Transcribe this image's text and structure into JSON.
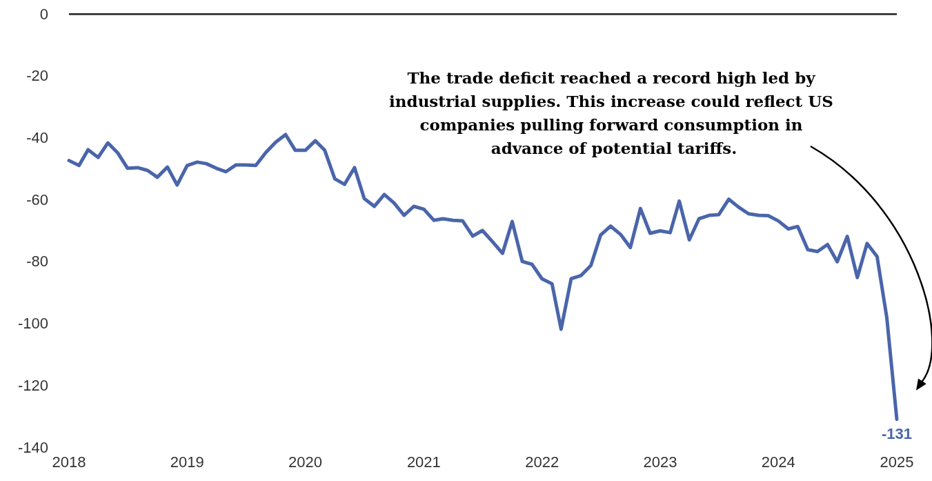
{
  "chart_data": {
    "type": "line",
    "x": [
      "2018-01",
      "2018-02",
      "2018-03",
      "2018-04",
      "2018-05",
      "2018-06",
      "2018-07",
      "2018-08",
      "2018-09",
      "2018-10",
      "2018-11",
      "2018-12",
      "2019-01",
      "2019-02",
      "2019-03",
      "2019-04",
      "2019-05",
      "2019-06",
      "2019-07",
      "2019-08",
      "2019-09",
      "2019-10",
      "2019-11",
      "2019-12",
      "2020-01",
      "2020-02",
      "2020-03",
      "2020-04",
      "2020-05",
      "2020-06",
      "2020-07",
      "2020-08",
      "2020-09",
      "2020-10",
      "2020-11",
      "2020-12",
      "2021-01",
      "2021-02",
      "2021-03",
      "2021-04",
      "2021-05",
      "2021-06",
      "2021-07",
      "2021-08",
      "2021-09",
      "2021-10",
      "2021-11",
      "2021-12",
      "2022-01",
      "2022-02",
      "2022-03",
      "2022-04",
      "2022-05",
      "2022-06",
      "2022-07",
      "2022-08",
      "2022-09",
      "2022-10",
      "2022-11",
      "2022-12",
      "2023-01",
      "2023-02",
      "2023-03",
      "2023-04",
      "2023-05",
      "2023-06",
      "2023-07",
      "2023-08",
      "2023-09",
      "2023-10",
      "2023-11",
      "2023-12",
      "2024-01",
      "2024-02",
      "2024-03",
      "2024-04",
      "2024-05",
      "2024-06",
      "2024-07",
      "2024-08",
      "2024-09",
      "2024-10",
      "2024-11",
      "2024-12",
      "2025-01"
    ],
    "series": [
      {
        "color": "#4a65aa",
        "values": [
          -47.4,
          -49.0,
          -43.9,
          -46.4,
          -41.7,
          -45.0,
          -49.9,
          -49.7,
          -50.6,
          -52.8,
          -49.5,
          -55.3,
          -49.0,
          -47.9,
          -48.4,
          -49.9,
          -51.0,
          -48.8,
          -48.8,
          -49.0,
          -44.8,
          -41.5,
          -39.0,
          -44.1,
          -44.1,
          -41.0,
          -44.1,
          -53.3,
          -55.1,
          -49.7,
          -59.7,
          -62.2,
          -58.4,
          -61.1,
          -65.1,
          -62.2,
          -63.1,
          -66.7,
          -66.2,
          -66.7,
          -66.9,
          -71.8,
          -70.0,
          -73.6,
          -77.4,
          -67.1,
          -80.0,
          -80.9,
          -85.6,
          -87.2,
          -101.9,
          -85.6,
          -84.6,
          -81.3,
          -71.5,
          -68.6,
          -71.3,
          -75.5,
          -62.9,
          -70.9,
          -70.1,
          -70.7,
          -60.5,
          -73.0,
          -66.2,
          -65.1,
          -64.9,
          -59.9,
          -62.5,
          -64.6,
          -65.1,
          -65.2,
          -66.9,
          -69.5,
          -68.7,
          -76.2,
          -76.8,
          -74.5,
          -80.1,
          -71.9,
          -85.2,
          -74.2,
          -78.4,
          -98.1,
          -131
        ],
        "value_labels": [
          null,
          null,
          null,
          null,
          null,
          null,
          null,
          null,
          null,
          null,
          null,
          null,
          null,
          null,
          null,
          null,
          null,
          null,
          null,
          null,
          null,
          null,
          null,
          null,
          null,
          null,
          null,
          null,
          null,
          null,
          null,
          null,
          null,
          null,
          null,
          null,
          null,
          null,
          null,
          null,
          null,
          null,
          null,
          null,
          null,
          null,
          null,
          null,
          null,
          null,
          null,
          null,
          null,
          null,
          null,
          null,
          null,
          null,
          null,
          null,
          null,
          null,
          null,
          null,
          null,
          null,
          null,
          null,
          null,
          null,
          null,
          null,
          null,
          null,
          null,
          null,
          null,
          null,
          null,
          null,
          null,
          null,
          null,
          null,
          "-131"
        ]
      }
    ],
    "xlim": [
      "2018-01",
      "2025-01"
    ],
    "xticks": [
      {
        "value": "2018-01",
        "label": "2018"
      },
      {
        "value": "2019-01",
        "label": "2019"
      },
      {
        "value": "2020-01",
        "label": "2020"
      },
      {
        "value": "2021-01",
        "label": "2021"
      },
      {
        "value": "2022-01",
        "label": "2022"
      },
      {
        "value": "2023-01",
        "label": "2023"
      },
      {
        "value": "2024-01",
        "label": "2024"
      },
      {
        "value": "2025-01",
        "label": "2025"
      }
    ],
    "ylim": [
      -140,
      0
    ],
    "yticks": [
      -140,
      -120,
      -100,
      -80,
      -60,
      -40,
      -20,
      0
    ],
    "ref_lines": [
      {
        "axis": "y",
        "value": 0,
        "color": "#404040"
      }
    ],
    "annotations": [
      "The trade deficit reached a record high led by industrial supplies. This increase could reflect US companies pulling forward consumption in advance of potential tariffs."
    ],
    "grid": false,
    "marker": "none",
    "line_style": "solid"
  }
}
